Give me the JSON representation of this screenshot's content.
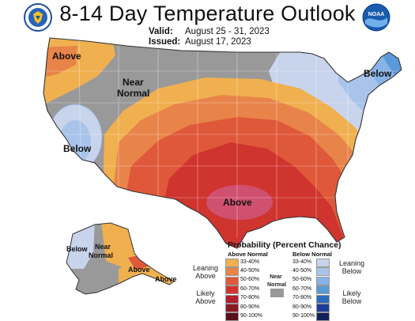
{
  "header": {
    "title": "8-14 Day Temperature Outlook",
    "valid_label": "Valid:",
    "valid_value": "August 25 - 31, 2023",
    "issued_label": "Issued:",
    "issued_value": "August 17, 2023"
  },
  "logos": {
    "left_icon": "doc-seal-icon",
    "right_icon": "noaa-logo-icon",
    "right_text": "NOAA"
  },
  "map_labels": {
    "conus_nw_above": "Above",
    "conus_near_normal_1": "Near",
    "conus_near_normal_2": "Normal",
    "conus_west_below": "Below",
    "conus_ne_below": "Below",
    "conus_south_above": "Above",
    "ak_below": "Below",
    "ak_near_normal_1": "Near",
    "ak_near_normal_2": "Normal",
    "ak_above_1": "Above",
    "ak_above_2": "Above"
  },
  "legend": {
    "title": "Probability (Percent Chance)",
    "above_header": "Above Normal",
    "below_header": "Below Normal",
    "near_normal_1": "Near",
    "near_normal_2": "Normal",
    "leaning_above_1": "Leaning",
    "leaning_above_2": "Above",
    "likely_above_1": "Likely",
    "likely_above_2": "Above",
    "leaning_below_1": "Leaning",
    "leaning_below_2": "Below",
    "likely_below_1": "Likely",
    "likely_below_2": "Below",
    "ranges": [
      "33-40%",
      "40-50%",
      "50-60%",
      "60-70%",
      "70-80%",
      "80-90%",
      "90-100%"
    ],
    "above_colors": [
      "#f0b050",
      "#e8844a",
      "#e0583a",
      "#d0342e",
      "#b0202a",
      "#8a1a22",
      "#5a1018"
    ],
    "below_colors": [
      "#c8d4ec",
      "#a8c4ea",
      "#86b4e8",
      "#5a9ad8",
      "#2e6cc0",
      "#1c3c98",
      "#12205a"
    ],
    "near_color": "#999999"
  }
}
